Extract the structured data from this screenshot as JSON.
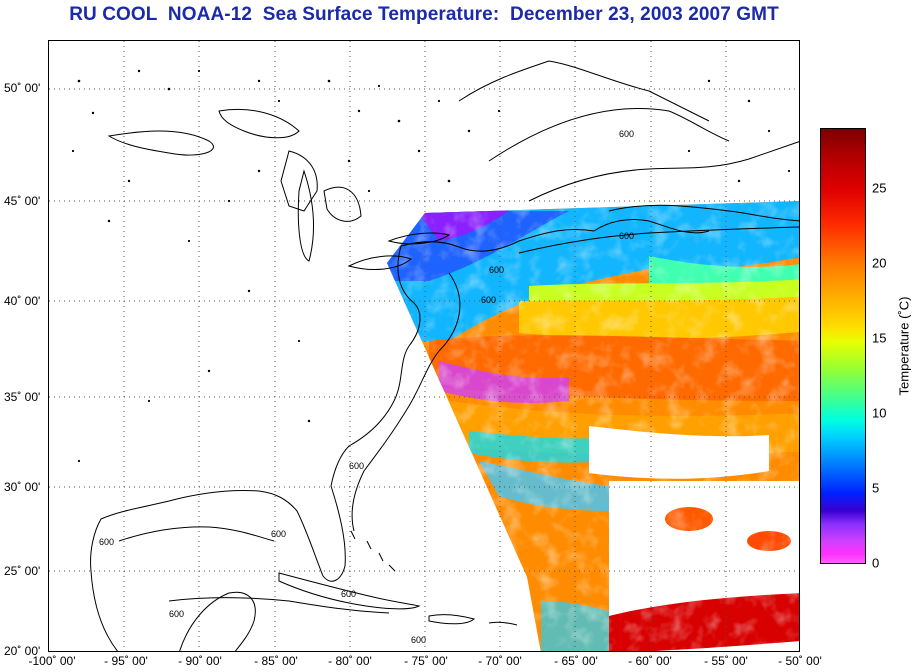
{
  "title": "RU COOL  NOAA-12  Sea Surface Temperature:  December 23, 2003 2007 GMT",
  "map": {
    "lat_ticks": [
      "50˚ 00'",
      "45˚ 00'",
      "40˚ 00'",
      "35˚ 00'",
      "30˚ 00'",
      "25˚ 00'",
      "20˚ 00'"
    ],
    "lon_ticks": [
      "-100˚ 00'",
      "- 95˚ 00'",
      "- 90˚ 00'",
      "- 85˚ 00'",
      "- 80˚ 00'",
      "- 75˚ 00'",
      "- 70˚ 00'",
      "- 65˚ 00'",
      "- 60˚ 00'",
      "- 55˚ 00'",
      "- 50˚ 00'"
    ],
    "contour_labels": [
      "600",
      "600",
      "600",
      "600",
      "600",
      "600",
      "600",
      "600",
      "600",
      "600"
    ],
    "lat_range": [
      20,
      52
    ],
    "lon_range": [
      -100,
      -50
    ],
    "grid": true
  },
  "colorbar": {
    "ticks": [
      "25",
      "20",
      "15",
      "10",
      "5",
      "0"
    ],
    "label": "Temperature (˚C)",
    "range": [
      0,
      29
    ]
  },
  "colors": {
    "title": "#1a2aa8",
    "coast": "#000000",
    "grid": "#555555"
  }
}
